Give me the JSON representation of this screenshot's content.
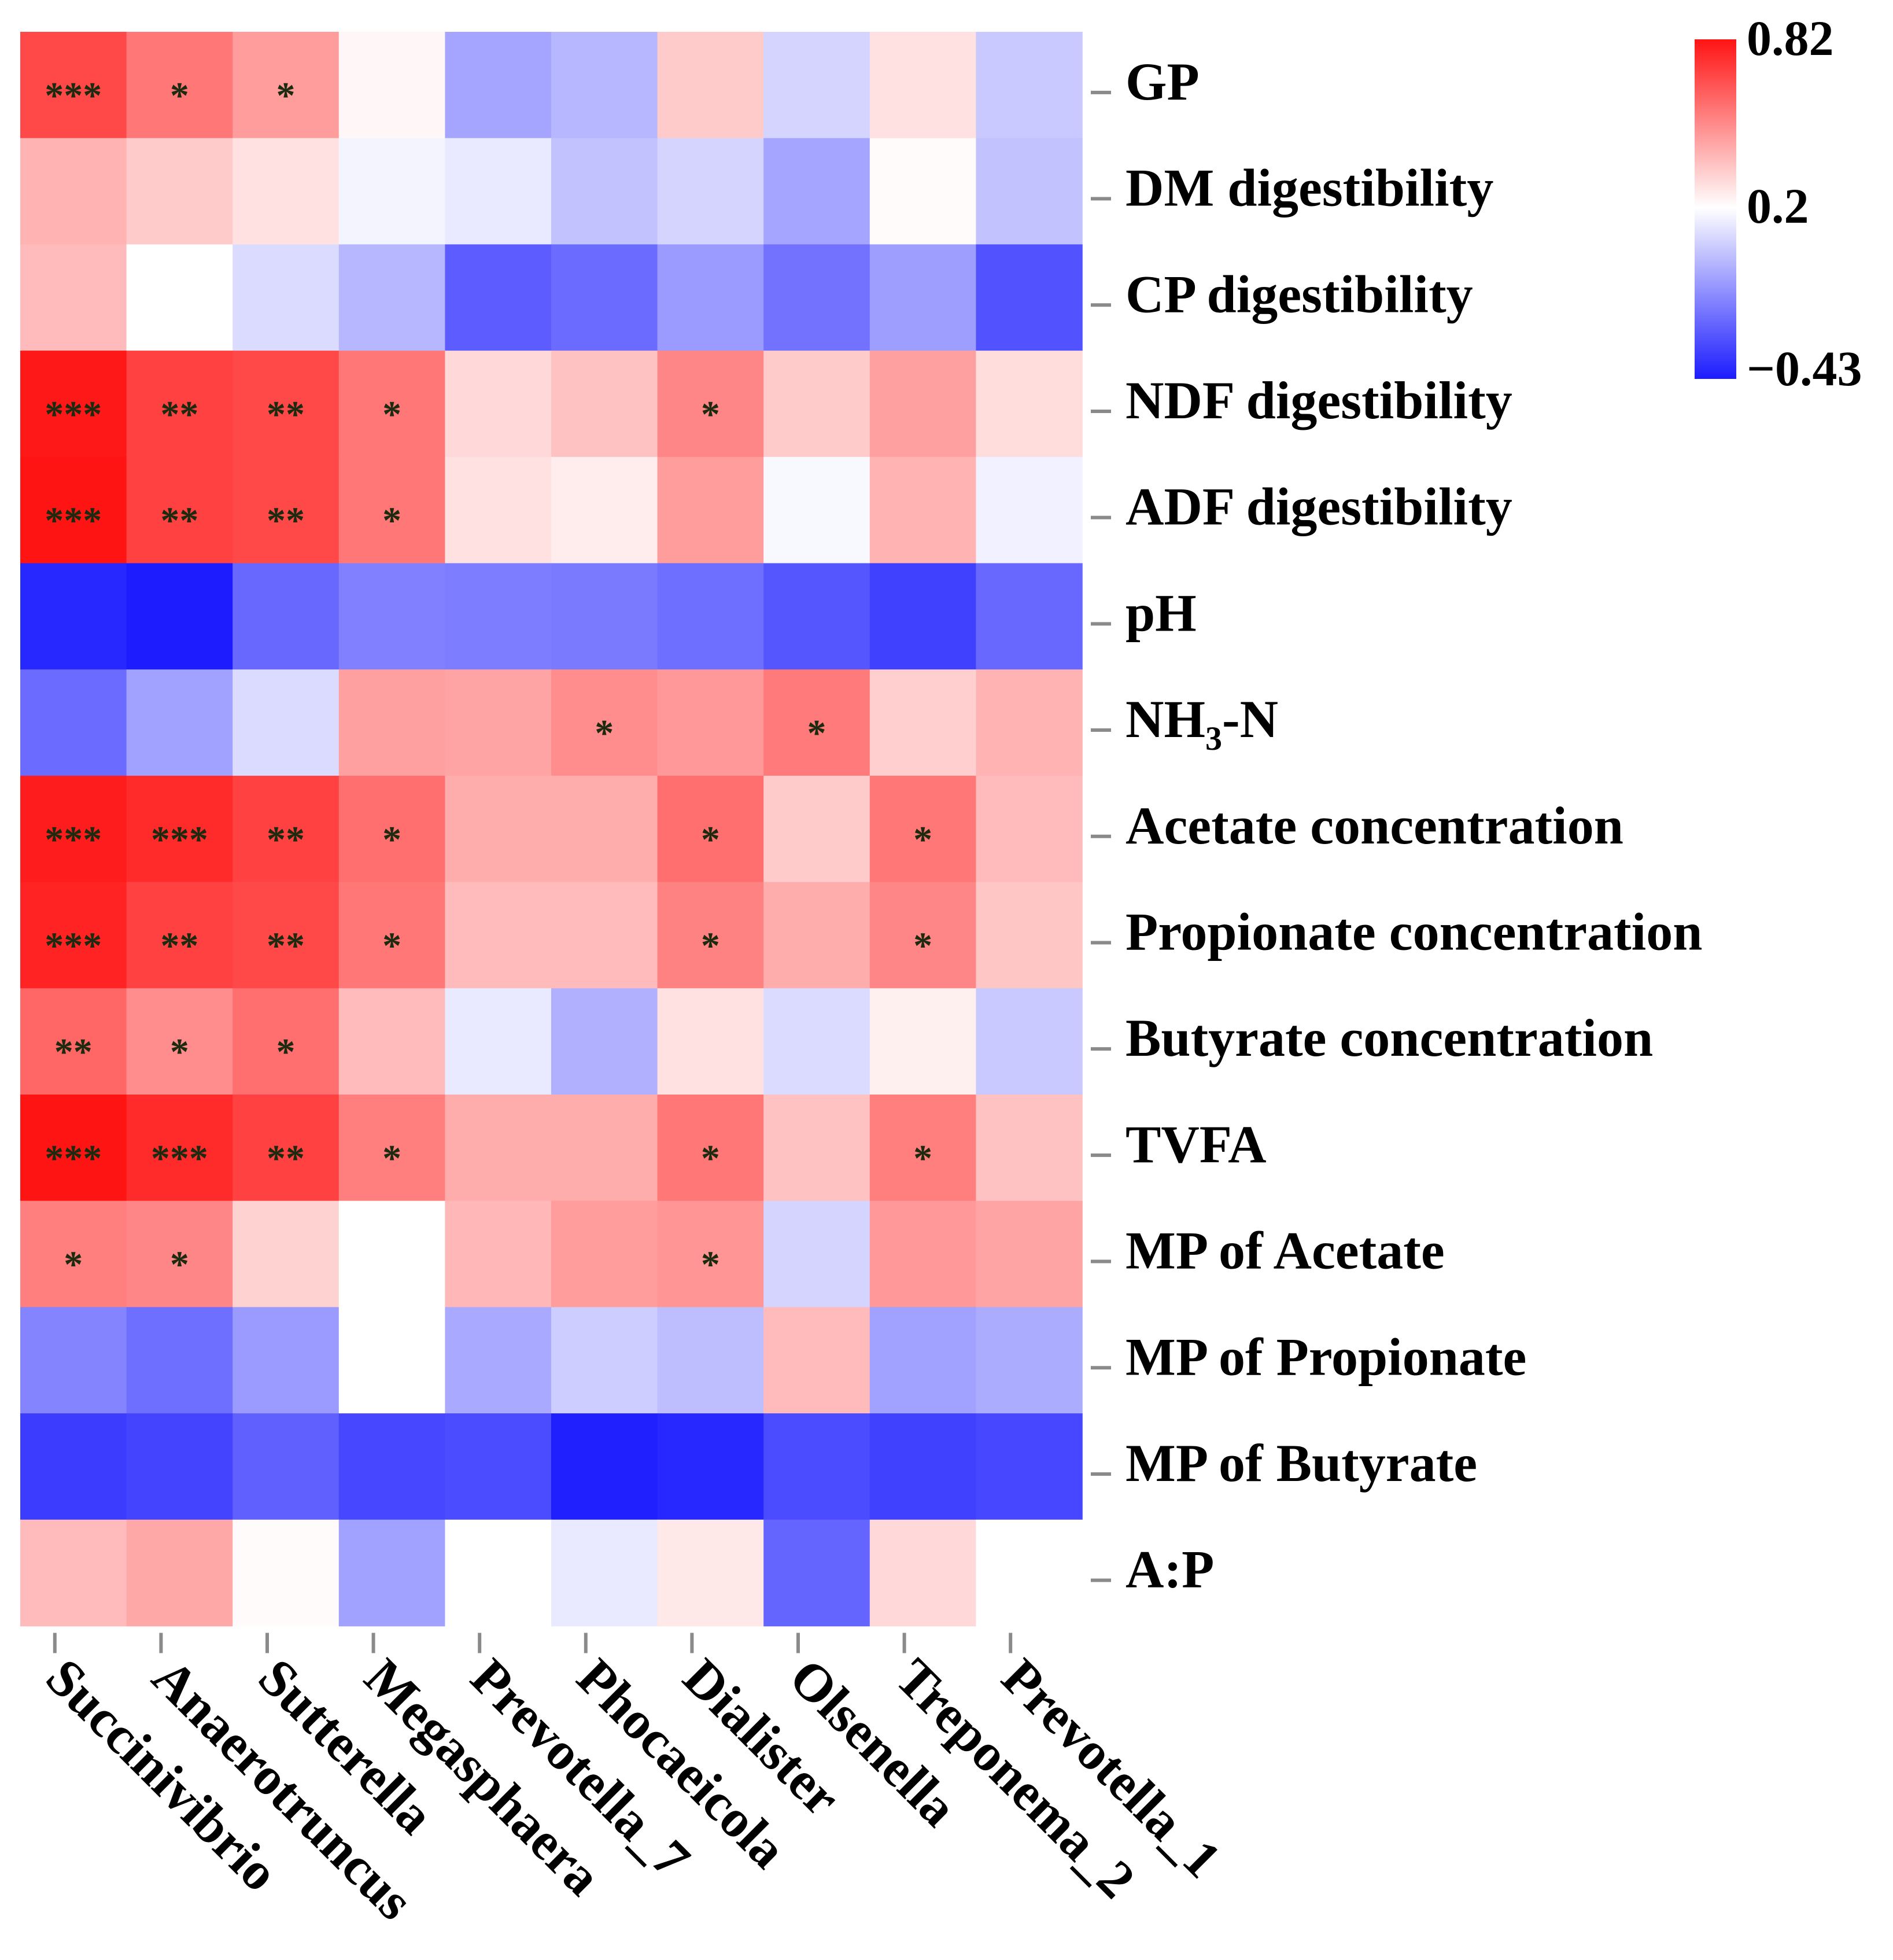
{
  "chart_data": {
    "type": "heatmap",
    "title": "",
    "rows": [
      "GP",
      "DM digestibility",
      "CP digestibility",
      "NDF digestibility",
      "ADF digestibility",
      "pH",
      "NH3-N",
      "Acetate concentration",
      "Propionate concentration",
      "Butyrate concentration",
      "TVFA",
      "MP of Acetate",
      "MP of Propionate",
      "MP of Butyrate",
      "A:P"
    ],
    "columns": [
      "Succinivibrio",
      "Anaerotruncus",
      "Sutterella",
      "Megasphaera",
      "Prevotella_7",
      "Phocaeicola",
      "Dialister",
      "Olsenella",
      "Treponema_2",
      "Prevotella_1"
    ],
    "values": [
      [
        0.68,
        0.56,
        0.46,
        0.22,
        -0.05,
        0.0,
        0.34,
        0.08,
        0.28,
        0.05
      ],
      [
        0.4,
        0.34,
        0.28,
        0.17,
        0.14,
        0.03,
        0.08,
        -0.05,
        0.21,
        0.03
      ],
      [
        0.38,
        0.2,
        0.1,
        0.0,
        -0.25,
        -0.21,
        -0.08,
        -0.19,
        -0.07,
        -0.28
      ],
      [
        0.81,
        0.7,
        0.68,
        0.56,
        0.3,
        0.36,
        0.52,
        0.34,
        0.45,
        0.29
      ],
      [
        0.82,
        0.7,
        0.68,
        0.56,
        0.28,
        0.25,
        0.46,
        0.18,
        0.4,
        0.16
      ],
      [
        -0.4,
        -0.43,
        -0.22,
        -0.15,
        -0.16,
        -0.17,
        -0.2,
        -0.27,
        -0.33,
        -0.22
      ],
      [
        -0.21,
        -0.06,
        0.1,
        0.45,
        0.44,
        0.5,
        0.47,
        0.55,
        0.33,
        0.4
      ],
      [
        0.8,
        0.76,
        0.7,
        0.58,
        0.42,
        0.42,
        0.58,
        0.34,
        0.56,
        0.38
      ],
      [
        0.78,
        0.7,
        0.68,
        0.56,
        0.38,
        0.38,
        0.53,
        0.42,
        0.52,
        0.35
      ],
      [
        0.6,
        0.5,
        0.58,
        0.38,
        0.14,
        -0.02,
        0.28,
        0.1,
        0.24,
        0.05
      ],
      [
        0.82,
        0.76,
        0.7,
        0.54,
        0.42,
        0.42,
        0.56,
        0.36,
        0.54,
        0.36
      ],
      [
        0.54,
        0.52,
        0.32,
        0.2,
        0.39,
        0.46,
        0.48,
        0.08,
        0.47,
        0.44
      ],
      [
        -0.14,
        -0.2,
        -0.08,
        0.2,
        -0.04,
        0.06,
        0.02,
        0.38,
        -0.06,
        -0.03
      ],
      [
        -0.34,
        -0.32,
        -0.24,
        -0.31,
        -0.3,
        -0.42,
        -0.4,
        -0.3,
        -0.33,
        -0.31
      ],
      [
        0.38,
        0.43,
        0.21,
        -0.06,
        0.2,
        0.14,
        0.26,
        -0.23,
        0.3,
        0.2
      ]
    ],
    "significance": [
      [
        "***",
        "*",
        "*",
        "",
        "",
        "",
        "",
        "",
        "",
        ""
      ],
      [
        "",
        "",
        "",
        "",
        "",
        "",
        "",
        "",
        "",
        ""
      ],
      [
        "",
        "",
        "",
        "",
        "",
        "",
        "",
        "",
        "",
        ""
      ],
      [
        "***",
        "**",
        "**",
        "*",
        "",
        "",
        "*",
        "",
        "",
        ""
      ],
      [
        "***",
        "**",
        "**",
        "*",
        "",
        "",
        "",
        "",
        "",
        ""
      ],
      [
        "",
        "",
        "",
        "",
        "",
        "",
        "",
        "",
        "",
        ""
      ],
      [
        "",
        "",
        "",
        "",
        "",
        "*",
        "",
        "*",
        "",
        ""
      ],
      [
        "***",
        "***",
        "**",
        "*",
        "",
        "",
        "*",
        "",
        "*",
        ""
      ],
      [
        "***",
        "**",
        "**",
        "*",
        "",
        "",
        "*",
        "",
        "*",
        ""
      ],
      [
        "**",
        "*",
        "*",
        "",
        "",
        "",
        "",
        "",
        "",
        ""
      ],
      [
        "***",
        "***",
        "**",
        "*",
        "",
        "",
        "*",
        "",
        "*",
        ""
      ],
      [
        "*",
        "*",
        "",
        "",
        "",
        "",
        "*",
        "",
        "",
        ""
      ],
      [
        "",
        "",
        "",
        "",
        "",
        "",
        "",
        "",
        "",
        ""
      ],
      [
        "",
        "",
        "",
        "",
        "",
        "",
        "",
        "",
        "",
        ""
      ],
      [
        "",
        "",
        "",
        "",
        "",
        "",
        "",
        "",
        "",
        ""
      ]
    ],
    "colorbar": {
      "min": -0.43,
      "mid": 0.2,
      "max": 0.82,
      "tick_labels": [
        "0.82",
        "0.2",
        "−0.43"
      ],
      "low_color": "#1c1cff",
      "mid_color": "#ffffff",
      "high_color": "#ff1414"
    }
  }
}
